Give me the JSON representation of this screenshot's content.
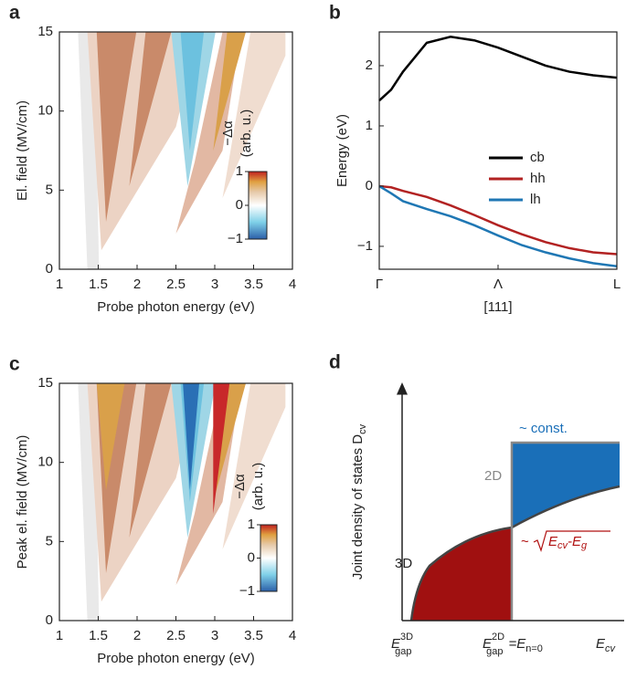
{
  "chart_data": [
    {
      "type": "heatmap",
      "panel": "a",
      "xlabel": "Probe photon energy (eV)",
      "ylabel": "El. field (MV/cm)",
      "xlim": [
        1,
        4
      ],
      "ylim": [
        0,
        15
      ],
      "xticks": [
        1,
        1.5,
        2,
        2.5,
        3,
        3.5,
        4
      ],
      "yticks": [
        0,
        5,
        10,
        15
      ],
      "clim": [
        -1,
        1
      ],
      "cticks": [
        {
          "value": -1,
          "label": "−1"
        },
        0,
        1
      ],
      "colorbar_label": [
        "−Δα",
        "(arb. u.)"
      ]
    },
    {
      "type": "line",
      "panel": "b",
      "xlabel": "[111]",
      "ylabel": "Energy (eV)",
      "x": [
        0,
        0.05,
        0.1,
        0.2,
        0.3,
        0.4,
        0.5,
        0.6,
        0.7,
        0.8,
        0.9,
        1
      ],
      "xlim": [
        0,
        1
      ],
      "xticks": [
        {
          "value": 0,
          "label": "Γ"
        },
        {
          "value": 0.5,
          "label": "Λ"
        },
        {
          "value": 1,
          "label": "L"
        }
      ],
      "ylim": [
        -1.38,
        2.56
      ],
      "yticks": [
        {
          "value": -1,
          "label": "−1"
        },
        0,
        1,
        2
      ],
      "series": [
        {
          "name": "cb",
          "color": "#000000",
          "values": [
            1.42,
            1.6,
            1.9,
            2.38,
            2.48,
            2.42,
            2.3,
            2.15,
            2.0,
            1.9,
            1.84,
            1.8
          ]
        },
        {
          "name": "hh",
          "color": "#b22222",
          "values": [
            0,
            -0.02,
            -0.08,
            -0.18,
            -0.32,
            -0.48,
            -0.65,
            -0.8,
            -0.93,
            -1.03,
            -1.1,
            -1.13
          ]
        },
        {
          "name": "lh",
          "color": "#1f77b4",
          "values": [
            0,
            -0.12,
            -0.25,
            -0.38,
            -0.5,
            -0.65,
            -0.82,
            -0.98,
            -1.1,
            -1.2,
            -1.28,
            -1.33
          ]
        }
      ]
    },
    {
      "type": "heatmap",
      "panel": "c",
      "xlabel": "Probe photon energy (eV)",
      "ylabel": "Peak el. field (MV/cm)",
      "xlim": [
        1,
        4
      ],
      "ylim": [
        0,
        15
      ],
      "xticks": [
        1,
        1.5,
        2,
        2.5,
        3,
        3.5,
        4
      ],
      "yticks": [
        0,
        5,
        10,
        15
      ],
      "clim": [
        -1,
        1
      ],
      "cticks": [
        {
          "value": -1,
          "label": "−1"
        },
        0,
        1
      ],
      "colorbar_label": [
        "−Δα",
        "(arb. u.)"
      ]
    }
  ],
  "diagram": {
    "panel": "d",
    "ylabel": {
      "text": "Joint density of states D",
      "sub": "cv"
    },
    "const_label": "~ const.",
    "label_2d": "2D",
    "label_3d": "3D",
    "sqrt_label": {
      "prefix": "~",
      "base1": "E",
      "sub1": "cv",
      "sep": "-",
      "base2": "E",
      "sub2": "g"
    },
    "gap3d": {
      "base": "E",
      "sub": "gap",
      "sup": "3D"
    },
    "gap2d": {
      "base": "E",
      "sub": "gap",
      "sup": "2D",
      "rest": "=E",
      "sub2": "n=0"
    },
    "xlabel": {
      "base": "E",
      "sub": "cv"
    }
  }
}
